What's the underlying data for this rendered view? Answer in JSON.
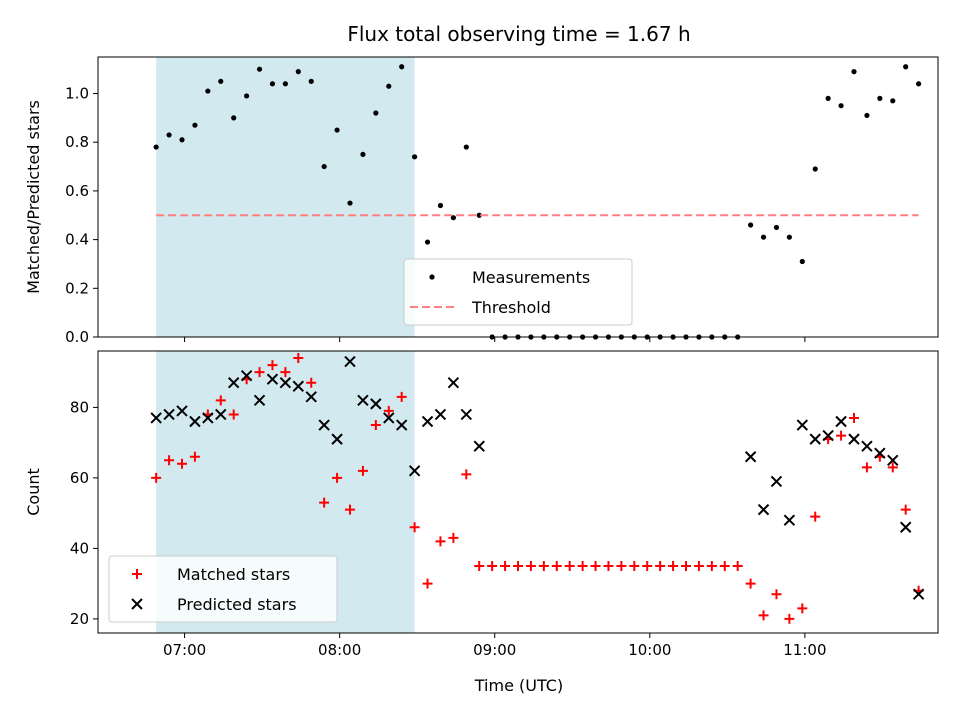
{
  "chart_data": [
    {
      "type": "scatter",
      "title": "Flux total observing time = 1.67 h",
      "xlabel": "",
      "ylabel": "Matched/Predicted stars",
      "ylim": [
        0,
        1.15
      ],
      "yticks": [
        "0.0",
        "0.2",
        "0.4",
        "0.6",
        "0.8",
        "1.0"
      ],
      "ytick_values": [
        0,
        0.2,
        0.4,
        0.6,
        0.8,
        1.0
      ],
      "shaded_region": {
        "x_start": "06:49",
        "x_end": "08:29",
        "color": "#d2e9f0"
      },
      "legend": {
        "placement": "lower-center",
        "entries": [
          "Measurements",
          "Threshold"
        ]
      },
      "series": [
        {
          "name": "Measurements",
          "marker": "dot",
          "color": "#000000",
          "x": [
            "06:49",
            "06:54",
            "06:59",
            "07:04",
            "07:09",
            "07:14",
            "07:19",
            "07:24",
            "07:29",
            "07:34",
            "07:39",
            "07:44",
            "07:49",
            "07:54",
            "07:59",
            "08:04",
            "08:09",
            "08:14",
            "08:19",
            "08:24",
            "08:29",
            "08:34",
            "08:39",
            "08:44",
            "08:49",
            "08:54",
            "08:59",
            "09:04",
            "09:09",
            "09:14",
            "09:19",
            "09:24",
            "09:29",
            "09:34",
            "09:39",
            "09:44",
            "09:49",
            "09:54",
            "09:59",
            "10:04",
            "10:09",
            "10:14",
            "10:19",
            "10:24",
            "10:29",
            "10:34",
            "10:39",
            "10:44",
            "10:49",
            "10:54",
            "10:59",
            "11:04",
            "11:09",
            "11:14",
            "11:19",
            "11:24",
            "11:29",
            "11:34",
            "11:39",
            "11:44"
          ],
          "y": [
            0.78,
            0.83,
            0.81,
            0.87,
            1.01,
            1.05,
            0.9,
            0.99,
            1.1,
            1.04,
            1.04,
            1.09,
            1.05,
            0.7,
            0.85,
            0.55,
            0.75,
            0.92,
            1.03,
            1.11,
            0.74,
            0.39,
            0.54,
            0.49,
            0.78,
            0.5,
            0.0,
            0.0,
            0.0,
            0.0,
            0.0,
            0.0,
            0.0,
            0.0,
            0.0,
            0.0,
            0.0,
            0.0,
            0.0,
            0.0,
            0.0,
            0.0,
            0.0,
            0.0,
            0.0,
            0.0,
            0.46,
            0.41,
            0.45,
            0.41,
            0.31,
            0.69,
            0.98,
            0.95,
            1.09,
            0.91,
            0.98,
            0.97,
            1.11,
            1.04
          ]
        },
        {
          "name": "Threshold",
          "style": "dashed",
          "color": "#ff7f7f",
          "x": [
            "06:49",
            "11:44"
          ],
          "y": [
            0.5,
            0.5
          ]
        }
      ]
    },
    {
      "type": "scatter",
      "title": "",
      "xlabel": "Time (UTC)",
      "ylabel": "Count",
      "ylim": [
        16,
        96
      ],
      "yticks": [
        "20",
        "40",
        "60",
        "80"
      ],
      "ytick_values": [
        20,
        40,
        60,
        80
      ],
      "x_ticks": [
        "07:00",
        "08:00",
        "09:00",
        "10:00",
        "11:00"
      ],
      "shaded_region": {
        "x_start": "06:49",
        "x_end": "08:29",
        "color": "#d2e9f0"
      },
      "legend": {
        "placement": "lower-left",
        "entries": [
          "Matched stars",
          "Predicted stars"
        ]
      },
      "series": [
        {
          "name": "Matched stars",
          "marker": "plus",
          "color": "#ff0000",
          "x": [
            "06:49",
            "06:54",
            "06:59",
            "07:04",
            "07:09",
            "07:14",
            "07:19",
            "07:24",
            "07:29",
            "07:34",
            "07:39",
            "07:44",
            "07:49",
            "07:54",
            "07:59",
            "08:04",
            "08:09",
            "08:14",
            "08:19",
            "08:24",
            "08:29",
            "08:34",
            "08:39",
            "08:44",
            "08:49",
            "08:54",
            "08:59",
            "09:04",
            "09:09",
            "09:14",
            "09:19",
            "09:24",
            "09:29",
            "09:34",
            "09:39",
            "09:44",
            "09:49",
            "09:54",
            "09:59",
            "10:04",
            "10:09",
            "10:14",
            "10:19",
            "10:24",
            "10:29",
            "10:34",
            "10:39",
            "10:44",
            "10:49",
            "10:54",
            "10:59",
            "11:04",
            "11:09",
            "11:14",
            "11:19",
            "11:24",
            "11:29",
            "11:34",
            "11:39",
            "11:44"
          ],
          "y": [
            60,
            65,
            64,
            66,
            78,
            82,
            78,
            88,
            90,
            92,
            90,
            94,
            87,
            53,
            60,
            51,
            62,
            75,
            79,
            83,
            46,
            30,
            42,
            43,
            61,
            35,
            35,
            35,
            35,
            35,
            35,
            35,
            35,
            35,
            35,
            35,
            35,
            35,
            35,
            35,
            35,
            35,
            35,
            35,
            35,
            35,
            30,
            21,
            27,
            20,
            23,
            49,
            71,
            72,
            77,
            63,
            66,
            63,
            51,
            28
          ]
        },
        {
          "name": "Predicted stars",
          "marker": "x",
          "color": "#000000",
          "x": [
            "06:49",
            "06:54",
            "06:59",
            "07:04",
            "07:09",
            "07:14",
            "07:19",
            "07:24",
            "07:29",
            "07:34",
            "07:39",
            "07:44",
            "07:49",
            "07:54",
            "07:59",
            "08:04",
            "08:09",
            "08:14",
            "08:19",
            "08:24",
            "08:29",
            "08:34",
            "08:39",
            "08:44",
            "08:49",
            "08:54",
            "10:39",
            "10:44",
            "10:49",
            "10:54",
            "10:59",
            "11:04",
            "11:09",
            "11:14",
            "11:19",
            "11:24",
            "11:29",
            "11:34",
            "11:39",
            "11:44"
          ],
          "y": [
            77,
            78,
            79,
            76,
            77,
            78,
            87,
            89,
            82,
            88,
            87,
            86,
            83,
            75,
            71,
            93,
            82,
            81,
            77,
            75,
            62,
            76,
            78,
            87,
            78,
            69,
            66,
            51,
            59,
            48,
            75,
            71,
            72,
            76,
            71,
            69,
            67,
            65,
            46,
            27
          ]
        }
      ]
    }
  ]
}
